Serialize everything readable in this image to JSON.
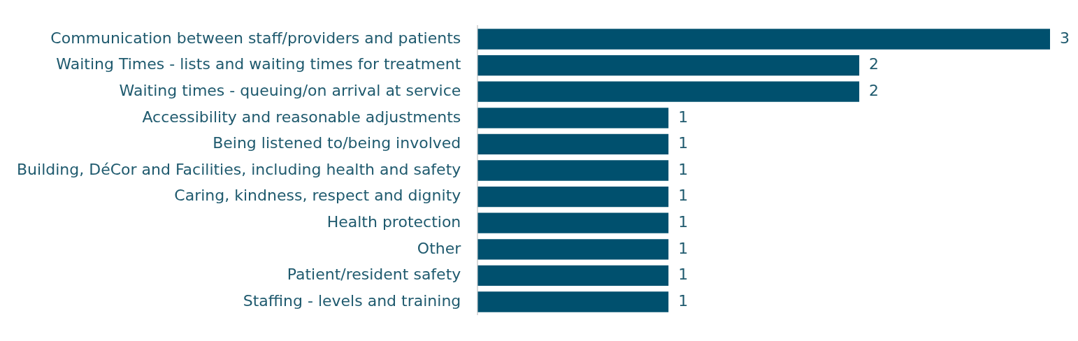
{
  "chart_data": {
    "type": "bar",
    "orientation": "horizontal",
    "categories": [
      "Communication between staff/providers and patients",
      "Waiting Times - lists and waiting times for treatment",
      "Waiting times - queuing/on arrival at service",
      "Accessibility and reasonable adjustments",
      "Being listened to/being involved",
      "Building, DéCor and Facilities, including health and safety",
      "Caring, kindness, respect and dignity",
      "Health protection",
      "Other",
      "Patient/resident safety",
      "Staffing - levels and training"
    ],
    "values": [
      3,
      2,
      2,
      1,
      1,
      1,
      1,
      1,
      1,
      1,
      1
    ],
    "color": "#00506e",
    "data_labels": true,
    "grid": false,
    "legend": false
  }
}
